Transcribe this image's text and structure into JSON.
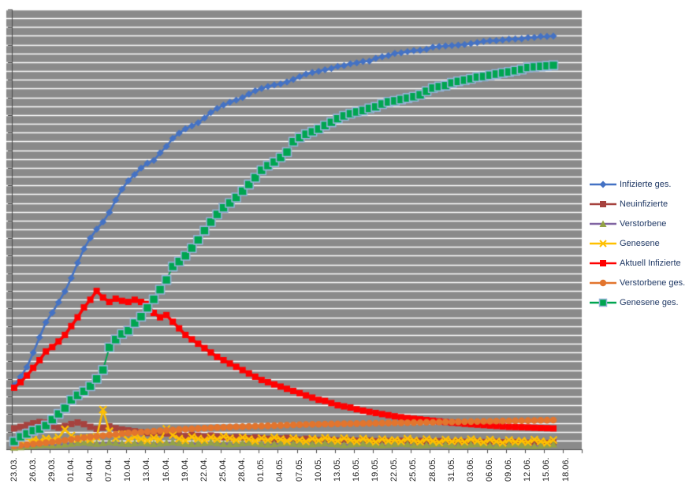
{
  "chart": {
    "plot_bg_color": "#8A8A8A",
    "gridline_color": "#FFFFFF",
    "axis_color": "#4D4D4D",
    "x_label_color": "#262626",
    "legend_text_color": "#1F3864"
  },
  "chart_data": {
    "type": "line",
    "title": "",
    "xlabel": "",
    "ylabel": "",
    "grid": true,
    "legend_position": "right",
    "y_axis": {
      "min": 0,
      "max": 200000,
      "gridline_step": 4000,
      "tick_labels_visible": false
    },
    "x_axis_tick_labels": [
      "23.03.",
      "26.03.",
      "29.03.",
      "01.04.",
      "04.04.",
      "07.04.",
      "10.04.",
      "13.04.",
      "16.04.",
      "19.04.",
      "22.04.",
      "25.04.",
      "28.04.",
      "01.05.",
      "04.05.",
      "07.05.",
      "10.05.",
      "13.05.",
      "16.05.",
      "19.05.",
      "22.05.",
      "25.05.",
      "28.05.",
      "31.05.",
      "03.06.",
      "06.06.",
      "09.06.",
      "12.06.",
      "15.06.",
      "18.06."
    ],
    "dates": [
      "23.03.",
      "24.03.",
      "25.03.",
      "26.03.",
      "27.03.",
      "28.03.",
      "29.03.",
      "30.03.",
      "31.03.",
      "01.04.",
      "02.04.",
      "03.04.",
      "04.04.",
      "05.04.",
      "06.04.",
      "07.04.",
      "08.04.",
      "09.04.",
      "10.04.",
      "11.04.",
      "12.04.",
      "13.04.",
      "14.04.",
      "15.04.",
      "16.04.",
      "17.04.",
      "18.04.",
      "19.04.",
      "20.04.",
      "21.04.",
      "22.04.",
      "23.04.",
      "24.04.",
      "25.04.",
      "26.04.",
      "27.04.",
      "28.04.",
      "29.04.",
      "30.04.",
      "01.05.",
      "02.05.",
      "03.05.",
      "04.05.",
      "05.05.",
      "06.05.",
      "07.05.",
      "08.05.",
      "09.05.",
      "10.05.",
      "11.05.",
      "12.05.",
      "13.05.",
      "14.05.",
      "15.05.",
      "16.05.",
      "17.05.",
      "18.05.",
      "19.05.",
      "20.05.",
      "21.05.",
      "22.05.",
      "23.05.",
      "24.05.",
      "25.05.",
      "26.05.",
      "27.05.",
      "28.05.",
      "29.05.",
      "30.05.",
      "31.05.",
      "01.06.",
      "02.06.",
      "03.06.",
      "04.06.",
      "05.06.",
      "06.06.",
      "07.06.",
      "08.06.",
      "09.06.",
      "10.06.",
      "11.06.",
      "12.06.",
      "13.06.",
      "14.06.",
      "15.06.",
      "16.06."
    ],
    "series": [
      {
        "name": "Infizierte ges.",
        "color": "#4472C4",
        "marker": "diamond",
        "values": [
          29056,
          32991,
          37323,
          43938,
          50871,
          57695,
          62095,
          66885,
          71808,
          77872,
          84794,
          91159,
          96092,
          100123,
          103375,
          107663,
          113296,
          118235,
          122171,
          124908,
          127854,
          130072,
          131359,
          134753,
          137698,
          141397,
          143724,
          145743,
          147065,
          148453,
          150648,
          153129,
          154999,
          156513,
          157770,
          158758,
          159912,
          161539,
          163009,
          164077,
          164967,
          165664,
          166152,
          167007,
          168162,
          169430,
          170588,
          171324,
          171879,
          172576,
          173171,
          174098,
          174478,
          175233,
          175752,
          176369,
          176551,
          177778,
          178473,
          179021,
          179986,
          180328,
          180789,
          181288,
          181482,
          181895,
          182922,
          183189,
          183410,
          183594,
          183765,
          184091,
          184472,
          184924,
          185450,
          185750,
          185870,
          186109,
          186506,
          186522,
          186691,
          187226,
          187267,
          187682,
          187764,
          187945
        ]
      },
      {
        "name": "Neuinfizierte",
        "color": "#A6423E",
        "marker": "square",
        "values": [
          9500,
          10200,
          11000,
          11800,
          12400,
          12100,
          10500,
          9800,
          10600,
          11500,
          12200,
          11400,
          10200,
          9300,
          9800,
          10400,
          9600,
          9000,
          8600,
          8200,
          7800,
          7400,
          7000,
          7600,
          7200,
          6800,
          6400,
          6000,
          6600,
          6200,
          5800,
          6300,
          5900,
          5500,
          5200,
          5600,
          5300,
          5000,
          5400,
          5100,
          4800,
          4500,
          4900,
          5200,
          4700,
          4400,
          4800,
          4500,
          4200,
          4600,
          4300,
          4000,
          4400,
          4100,
          3900,
          4300,
          4000,
          3700,
          4100,
          3800,
          3600,
          3900,
          3700,
          3500,
          3800,
          3600,
          3400,
          3700,
          3500,
          3300,
          3600,
          3400,
          3200,
          3500,
          3300,
          3200,
          3400,
          3200,
          3100,
          3300,
          3100,
          3000,
          3200,
          3000,
          2900,
          3100
        ]
      },
      {
        "name": "Verstorbene",
        "color": "#8064A2",
        "marker": "triangle",
        "marker_color": "#94A346",
        "values": [
          800,
          1000,
          1300,
          1600,
          1900,
          2100,
          1800,
          2000,
          2300,
          2600,
          2900,
          3100,
          2800,
          2600,
          2900,
          3200,
          3000,
          2700,
          2500,
          2800,
          3000,
          2700,
          2400,
          2700,
          3000,
          3200,
          2900,
          2600,
          2400,
          2600,
          2900,
          3100,
          2800,
          2500,
          2300,
          2500,
          2800,
          3000,
          2700,
          2400,
          2200,
          2400,
          2700,
          2900,
          2600,
          2300,
          2100,
          2300,
          2600,
          2800,
          2500,
          2200,
          2000,
          2200,
          2500,
          2700,
          2400,
          2100,
          1900,
          2100,
          2400,
          2600,
          2300,
          2000,
          1800,
          2000,
          2300,
          2500,
          2200,
          1900,
          1700,
          1900,
          2200,
          2400,
          2100,
          1800,
          1600,
          1800,
          2100,
          2300,
          2000,
          1700,
          1500,
          1700,
          2000,
          2200
        ]
      },
      {
        "name": "Genesene",
        "color": "#FFC000",
        "marker": "x",
        "values": [
          3200,
          4000,
          5200,
          4400,
          3600,
          4800,
          4200,
          5400,
          9000,
          6200,
          4600,
          5200,
          4400,
          5600,
          18000,
          8200,
          5000,
          6800,
          4200,
          5600,
          4800,
          4000,
          5200,
          4400,
          9200,
          6400,
          4800,
          4000,
          5600,
          4800,
          4200,
          5400,
          4600,
          5800,
          5000,
          4200,
          5400,
          4600,
          3800,
          5000,
          4200,
          5400,
          4600,
          3800,
          5000,
          4200,
          3600,
          4800,
          4000,
          5200,
          4400,
          3800,
          5000,
          4200,
          3600,
          4800,
          4000,
          3400,
          4600,
          3800,
          4200,
          3600,
          4800,
          4000,
          3400,
          4600,
          3800,
          3200,
          4400,
          3600,
          4000,
          3400,
          4600,
          3800,
          3200,
          4400,
          3600,
          3000,
          4200,
          3400,
          3800,
          3200,
          4400,
          3600,
          3000,
          4200
        ]
      },
      {
        "name": "Aktuell Infizierte",
        "color": "#FF0000",
        "marker": "square",
        "values": [
          28000,
          30500,
          33500,
          37000,
          40500,
          44500,
          46500,
          49000,
          52000,
          56000,
          60000,
          64500,
          68000,
          72000,
          69000,
          67000,
          68500,
          67500,
          67000,
          68000,
          67000,
          66000,
          62000,
          60000,
          61000,
          58000,
          55000,
          52000,
          50000,
          48000,
          46000,
          44000,
          42000,
          40500,
          39000,
          37500,
          36000,
          34500,
          33000,
          31500,
          30500,
          29500,
          28500,
          27500,
          26500,
          25500,
          24500,
          23500,
          22500,
          22000,
          21000,
          20000,
          19500,
          19000,
          18200,
          17600,
          17000,
          16500,
          16000,
          15500,
          15000,
          14600,
          14200,
          13900,
          13600,
          13300,
          13000,
          12700,
          12400,
          12100,
          11900,
          11600,
          11400,
          11200,
          11000,
          10800,
          10600,
          10400,
          10200,
          10100,
          10000,
          9900,
          9800,
          9700,
          9600,
          9500
        ]
      },
      {
        "name": "Verstorbene ges.",
        "color": "#E2752E",
        "marker": "circle",
        "values": [
          1500,
          1800,
          2100,
          2400,
          2700,
          3000,
          3300,
          3700,
          4100,
          4500,
          4900,
          5300,
          5600,
          5900,
          6200,
          6500,
          6800,
          7100,
          7400,
          7600,
          7800,
          8000,
          8200,
          8400,
          8600,
          8800,
          9000,
          9150,
          9300,
          9450,
          9600,
          9750,
          9900,
          10000,
          10100,
          10200,
          10300,
          10400,
          10500,
          10600,
          10700,
          10800,
          10900,
          11000,
          11100,
          11200,
          11300,
          11350,
          11400,
          11450,
          11500,
          11550,
          11600,
          11650,
          11700,
          11750,
          11800,
          11850,
          11900,
          11950,
          12000,
          12050,
          12100,
          12150,
          12200,
          12250,
          12300,
          12350,
          12400,
          12450,
          12500,
          12550,
          12600,
          12650,
          12700,
          12750,
          12800,
          12850,
          12900,
          12950,
          13000,
          13050,
          13100,
          13150,
          13200,
          13250
        ]
      },
      {
        "name": "Genesene ges.",
        "color": "#00A550",
        "marker": "square_big",
        "marker_color": "#00A550",
        "marker_border": "#95B3D7",
        "values": [
          3547,
          5673,
          7015,
          8481,
          9211,
          10800,
          13500,
          16100,
          18700,
          22440,
          24575,
          26400,
          28700,
          32000,
          36081,
          46300,
          49900,
          52407,
          53913,
          57400,
          60300,
          64300,
          68200,
          72600,
          77000,
          83114,
          85400,
          88000,
          91500,
          95200,
          99400,
          103300,
          106800,
          109800,
          112000,
          114500,
          117400,
          120400,
          123500,
          126900,
          129000,
          130600,
          132700,
          135100,
          139900,
          141700,
          143300,
          144400,
          145617,
          147200,
          148700,
          150300,
          151597,
          152600,
          153400,
          154011,
          155041,
          155681,
          156966,
          158000,
          158400,
          159064,
          159716,
          160300,
          161199,
          162800,
          164245,
          164908,
          165352,
          166609,
          167300,
          167845,
          168480,
          169224,
          169556,
          170130,
          170630,
          171147,
          171600,
          172139,
          172704,
          173600,
          173889,
          174100,
          174331,
          174602
        ]
      }
    ]
  }
}
